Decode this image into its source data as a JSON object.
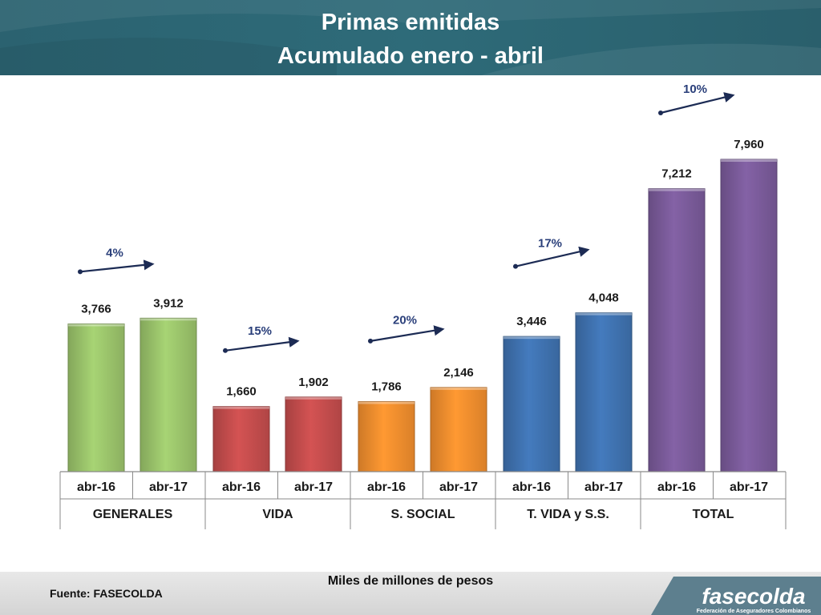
{
  "header": {
    "title_line1": "Primas emitidas",
    "title_line2": "Acumulado  enero - abril"
  },
  "footer": {
    "unit_label": "Miles de millones de pesos",
    "source": "Fuente: FASECOLDA",
    "logo_name": "fasecolda",
    "logo_tagline": "Federación de Aseguradores Colombianos"
  },
  "chart_data": {
    "type": "bar",
    "groups": [
      {
        "name": "GENERALES",
        "color": "#9bc46b",
        "growth": "4%",
        "bars": [
          {
            "period": "abr-16",
            "value": 3766,
            "label": "3,766"
          },
          {
            "period": "abr-17",
            "value": 3912,
            "label": "3,912"
          }
        ]
      },
      {
        "name": "VIDA",
        "color": "#c44d4d",
        "growth": "15%",
        "bars": [
          {
            "period": "abr-16",
            "value": 1660,
            "label": "1,660"
          },
          {
            "period": "abr-17",
            "value": 1902,
            "label": "1,902"
          }
        ]
      },
      {
        "name": "S. SOCIAL",
        "color": "#f28e2e",
        "growth": "20%",
        "bars": [
          {
            "period": "abr-16",
            "value": 1786,
            "label": "1,786"
          },
          {
            "period": "abr-17",
            "value": 2146,
            "label": "2,146"
          }
        ]
      },
      {
        "name": "T. VIDA y S.S.",
        "color": "#3f72b0",
        "growth": "17%",
        "bars": [
          {
            "period": "abr-16",
            "value": 3446,
            "label": "3,446"
          },
          {
            "period": "abr-17",
            "value": 4048,
            "label": "4,048"
          }
        ]
      },
      {
        "name": "TOTAL",
        "color": "#7a5b9a",
        "growth": "10%",
        "bars": [
          {
            "period": "abr-16",
            "value": 7212,
            "label": "7,212"
          },
          {
            "period": "abr-17",
            "value": 7960,
            "label": "7,960"
          }
        ]
      }
    ],
    "ylim": [
      0,
      7960
    ],
    "grid": false,
    "arrow_color": "#1c2b54",
    "growth_label_color": "#2a3f7a"
  }
}
